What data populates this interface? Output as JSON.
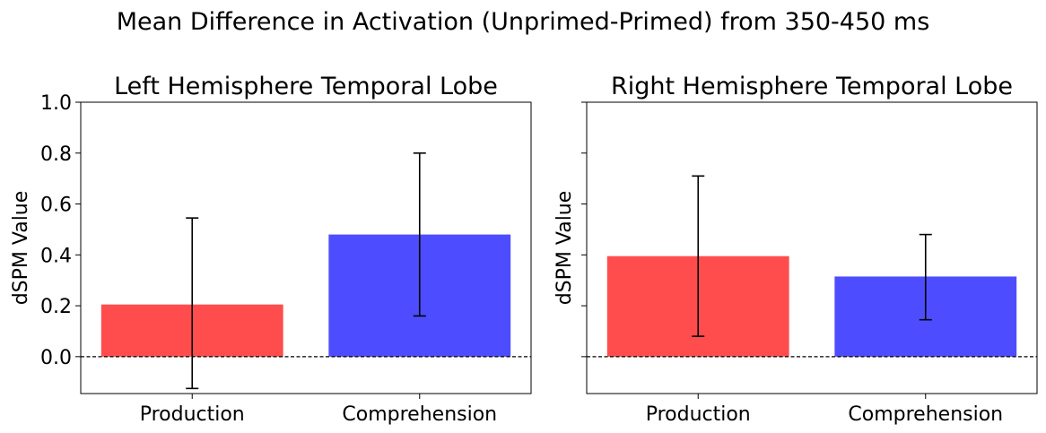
{
  "figure": {
    "suptitle": "Mean Difference in Activation (Unprimed-Primed) from 350-450 ms"
  },
  "chart_data": [
    {
      "type": "bar",
      "title": "Left Hemisphere Temporal Lobe",
      "xlabel": "",
      "ylabel": "dSPM Value",
      "categories": [
        "Production",
        "Comprehension"
      ],
      "values": [
        0.205,
        0.48
      ],
      "error_low": [
        -0.125,
        0.16
      ],
      "error_high": [
        0.545,
        0.8
      ],
      "colors": [
        "#ff4d4d",
        "#4d4dff"
      ],
      "ylim": [
        -0.145,
        1.0
      ],
      "yticks": [
        0.0,
        0.2,
        0.4,
        0.6,
        0.8,
        1.0
      ],
      "ytick_labels": [
        "0.0",
        "0.2",
        "0.4",
        "0.6",
        "0.8",
        "1.0"
      ],
      "show_ytick_labels": true,
      "zero_line": true,
      "grid": false
    },
    {
      "type": "bar",
      "title": "Right Hemisphere Temporal Lobe",
      "xlabel": "",
      "ylabel": "dSPM Value",
      "categories": [
        "Production",
        "Comprehension"
      ],
      "values": [
        0.395,
        0.315
      ],
      "error_low": [
        0.08,
        0.145
      ],
      "error_high": [
        0.71,
        0.48
      ],
      "colors": [
        "#ff4d4d",
        "#4d4dff"
      ],
      "ylim": [
        -0.145,
        1.0
      ],
      "yticks": [
        0.0,
        0.2,
        0.4,
        0.6,
        0.8,
        1.0
      ],
      "ytick_labels": [
        "0.0",
        "0.2",
        "0.4",
        "0.6",
        "0.8",
        "1.0"
      ],
      "show_ytick_labels": false,
      "zero_line": true,
      "grid": false
    }
  ]
}
